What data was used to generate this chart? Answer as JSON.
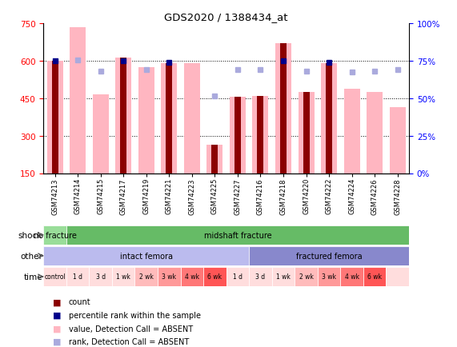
{
  "title": "GDS2020 / 1388434_at",
  "samples": [
    "GSM74213",
    "GSM74214",
    "GSM74215",
    "GSM74217",
    "GSM74219",
    "GSM74221",
    "GSM74223",
    "GSM74225",
    "GSM74227",
    "GSM74216",
    "GSM74218",
    "GSM74220",
    "GSM74222",
    "GSM74224",
    "GSM74226",
    "GSM74228"
  ],
  "absent_bar_values": [
    600,
    735,
    465,
    615,
    575,
    590,
    590,
    265,
    455,
    460,
    670,
    475,
    590,
    490,
    475,
    415
  ],
  "present_bar_values": [
    600,
    null,
    null,
    615,
    null,
    590,
    null,
    265,
    455,
    460,
    670,
    475,
    590,
    null,
    null,
    null
  ],
  "bar_color_present": "#8B0000",
  "bar_color_absent": "#FFB6C1",
  "dot_present": [
    600,
    null,
    null,
    600,
    null,
    595,
    null,
    null,
    null,
    null,
    600,
    null,
    595,
    null,
    null,
    null
  ],
  "dot_absent": [
    null,
    605,
    560,
    null,
    565,
    null,
    null,
    460,
    565,
    565,
    null,
    560,
    null,
    555,
    560,
    565
  ],
  "dot_color_present": "#00008B",
  "dot_color_absent": "#AAAADD",
  "ylim": [
    150,
    750
  ],
  "yticks": [
    150,
    300,
    450,
    600,
    750
  ],
  "ytick_labels_right": [
    "0%",
    "25%",
    "50%",
    "75%",
    "100%"
  ],
  "hgrid_vals": [
    300,
    450,
    600
  ],
  "shock_groups": [
    {
      "label": "no fracture",
      "start": 0,
      "end": 1,
      "color": "#99DD99"
    },
    {
      "label": "midshaft fracture",
      "start": 1,
      "end": 16,
      "color": "#66BB66"
    }
  ],
  "other_groups": [
    {
      "label": "intact femora",
      "start": 0,
      "end": 9,
      "color": "#BBBBEE"
    },
    {
      "label": "fractured femora",
      "start": 9,
      "end": 16,
      "color": "#8888CC"
    }
  ],
  "time_labels": [
    "control",
    "1 d",
    "3 d",
    "1 wk",
    "2 wk",
    "3 wk",
    "4 wk",
    "6 wk",
    "1 d",
    "3 d",
    "1 wk",
    "2 wk",
    "3 wk",
    "4 wk",
    "6 wk",
    ""
  ],
  "time_colors": [
    "#FFDDDD",
    "#FFDDDD",
    "#FFDDDD",
    "#FFDDDD",
    "#FFBBBB",
    "#FF9999",
    "#FF7777",
    "#FF5555",
    "#FFDDDD",
    "#FFDDDD",
    "#FFDDDD",
    "#FFBBBB",
    "#FF9999",
    "#FF7777",
    "#FF5555",
    "#FFDDDD"
  ],
  "legend_items": [
    {
      "color": "#8B0000",
      "label": "count"
    },
    {
      "color": "#00008B",
      "label": "percentile rank within the sample"
    },
    {
      "color": "#FFB6C1",
      "label": "value, Detection Call = ABSENT"
    },
    {
      "color": "#AAAADD",
      "label": "rank, Detection Call = ABSENT"
    }
  ]
}
